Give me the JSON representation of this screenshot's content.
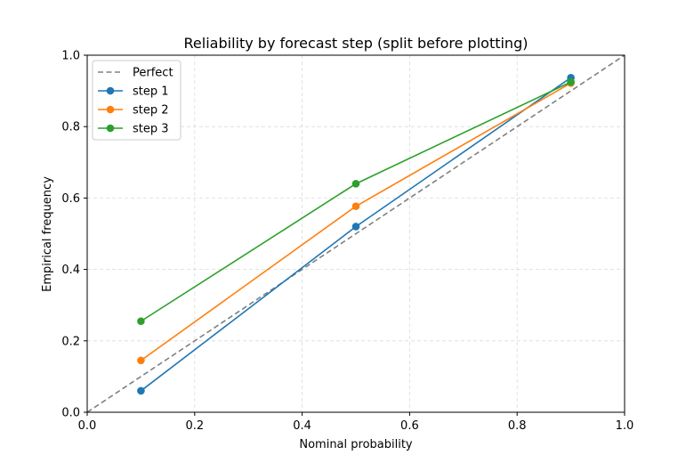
{
  "chart_data": {
    "type": "line",
    "title": "Reliability by forecast step (split before plotting)",
    "xlabel": "Nominal probability",
    "ylabel": "Empirical frequency",
    "xlim": [
      0.0,
      1.0
    ],
    "ylim": [
      0.0,
      1.0
    ],
    "xticks": [
      "0.0",
      "0.2",
      "0.4",
      "0.6",
      "0.8",
      "1.0"
    ],
    "yticks": [
      "0.0",
      "0.2",
      "0.4",
      "0.6",
      "0.8",
      "1.0"
    ],
    "grid": true,
    "legend_position": "top-left",
    "reference": {
      "name": "Perfect",
      "x": [
        0.0,
        1.0
      ],
      "y": [
        0.0,
        1.0
      ],
      "color": "#808080",
      "style": "dashed"
    },
    "series": [
      {
        "name": "step 1",
        "x": [
          0.1,
          0.5,
          0.9
        ],
        "y": [
          0.06,
          0.52,
          0.937
        ],
        "color": "#1f77b4"
      },
      {
        "name": "step 2",
        "x": [
          0.1,
          0.5,
          0.9
        ],
        "y": [
          0.145,
          0.577,
          0.922
        ],
        "color": "#ff7f0e"
      },
      {
        "name": "step 3",
        "x": [
          0.1,
          0.5,
          0.9
        ],
        "y": [
          0.255,
          0.64,
          0.925
        ],
        "color": "#2ca02c"
      }
    ]
  }
}
